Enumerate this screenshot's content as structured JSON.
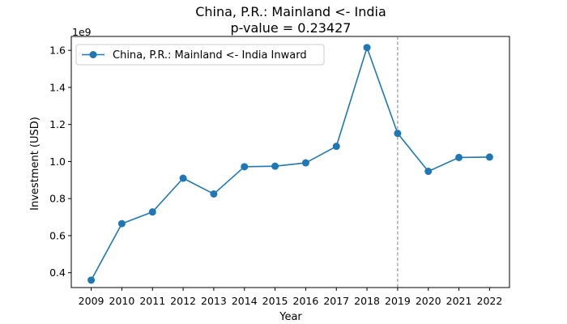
{
  "chart_data": {
    "type": "line",
    "title": "China, P.R.: Mainland <- India",
    "subtitle": "p-value = 0.23427",
    "xlabel": "Year",
    "ylabel": "Investment (USD)",
    "y_scale_label": "1e9",
    "x": [
      2009,
      2010,
      2011,
      2012,
      2013,
      2014,
      2015,
      2016,
      2017,
      2018,
      2019,
      2020,
      2021,
      2022
    ],
    "series": [
      {
        "name": "China, P.R.: Mainland <- India Inward",
        "color": "#1f77b4",
        "values": [
          0.36,
          0.665,
          0.728,
          0.91,
          0.825,
          0.972,
          0.975,
          0.993,
          1.082,
          1.615,
          1.152,
          0.947,
          1.022,
          1.024
        ]
      }
    ],
    "y_ticks": [
      0.4,
      0.6,
      0.8,
      1.0,
      1.2,
      1.4,
      1.6
    ],
    "y_tick_labels": [
      "0.4",
      "0.6",
      "0.8",
      "1.0",
      "1.2",
      "1.4",
      "1.6"
    ],
    "ylim": [
      0.32,
      1.675
    ],
    "xlim": [
      2008.35,
      2022.65
    ],
    "vline_x": 2019,
    "vline_color": "#808080",
    "legend_position": "top-left",
    "grid": false
  }
}
